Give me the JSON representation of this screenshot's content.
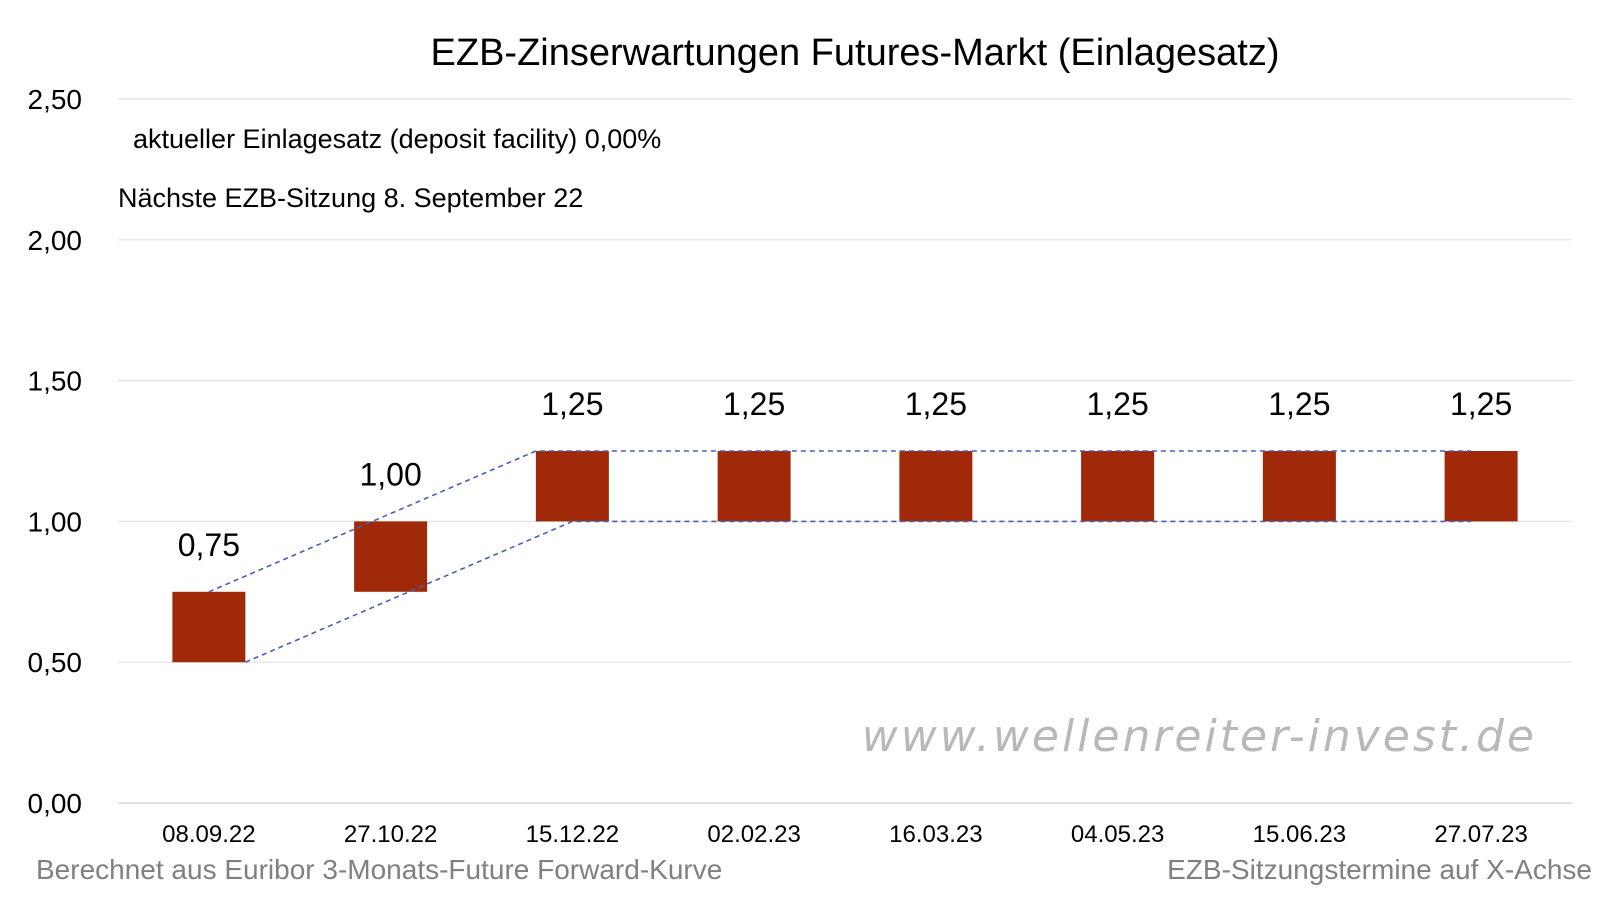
{
  "chart_data": {
    "type": "bar",
    "title": "EZB-Zinserwartungen Futures-Markt (Einlagesatz)",
    "categories": [
      "08.09.22",
      "27.10.22",
      "15.12.22",
      "02.02.23",
      "16.03.23",
      "04.05.23",
      "15.06.23",
      "27.07.23"
    ],
    "ranges": [
      [
        0.5,
        0.75
      ],
      [
        0.75,
        1.0
      ],
      [
        1.0,
        1.25
      ],
      [
        1.0,
        1.25
      ],
      [
        1.0,
        1.25
      ],
      [
        1.0,
        1.25
      ],
      [
        1.0,
        1.25
      ],
      [
        1.0,
        1.25
      ]
    ],
    "data_labels": [
      "0,75",
      "1,00",
      "1,25",
      "1,25",
      "1,25",
      "1,25",
      "1,25",
      "1,25"
    ],
    "y_ticks": [
      "0,00",
      "0,50",
      "1,00",
      "1,50",
      "2,00",
      "2,50"
    ],
    "ylim": [
      0,
      2.5
    ],
    "grid": true,
    "legend": "none",
    "bar_color": "#a0290a",
    "line_color": "#4a5fb0",
    "xlabel": "",
    "ylabel": ""
  },
  "annotations": {
    "current_rate": "aktueller Einlagesatz (deposit facility) 0,00%",
    "next_meeting": "Nächste EZB-Sitzung 8. September 22"
  },
  "watermark": "www.wellenreiter-invest.de",
  "footer": {
    "left": "Berechnet aus Euribor 3-Monats-Future Forward-Kurve",
    "right": "EZB-Sitzungstermine auf X-Achse"
  }
}
